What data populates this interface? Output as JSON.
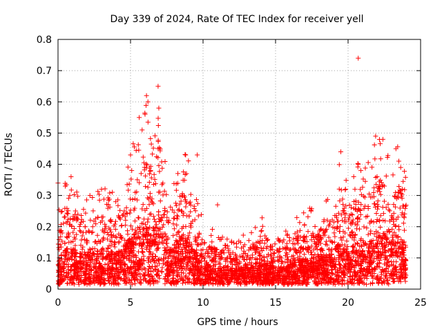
{
  "chart_data": {
    "type": "scatter",
    "title": "Day 339 of 2024, Rate Of TEC Index for receiver yell",
    "xlabel": "GPS time / hours",
    "ylabel": "ROTI / TECUs",
    "xlim": [
      0,
      25
    ],
    "ylim": [
      0,
      0.8
    ],
    "xticks": [
      0,
      5,
      10,
      15,
      20,
      25
    ],
    "yticks": [
      0,
      0.1,
      0.2,
      0.3,
      0.4,
      0.5,
      0.6,
      0.7,
      0.8
    ],
    "xtick_labels": [
      "0",
      "5",
      "10",
      "15",
      "20",
      "25"
    ],
    "ytick_labels": [
      "0",
      "0.1",
      "0.2",
      "0.3",
      "0.4",
      "0.5",
      "0.6",
      "0.7",
      "0.8"
    ],
    "grid": true,
    "marker": "+",
    "color": "#ff0000",
    "series": [
      {
        "name": "ROTI",
        "envelope_x": [
          0,
          0.5,
          1,
          2,
          3,
          4,
          4.5,
          5,
          5.5,
          6,
          6.5,
          7,
          7.5,
          8,
          8.5,
          9,
          9.5,
          10,
          10.5,
          11,
          12,
          13,
          14,
          15,
          16,
          16.5,
          17,
          18,
          19,
          19.5,
          20,
          20.5,
          21,
          21.5,
          22,
          22.5,
          23,
          23.5,
          24
        ],
        "envelope_y": [
          0.23,
          0.33,
          0.33,
          0.28,
          0.32,
          0.3,
          0.33,
          0.43,
          0.5,
          0.62,
          0.5,
          0.66,
          0.35,
          0.33,
          0.43,
          0.43,
          0.3,
          0.2,
          0.18,
          0.17,
          0.15,
          0.16,
          0.22,
          0.16,
          0.18,
          0.22,
          0.24,
          0.26,
          0.3,
          0.43,
          0.3,
          0.4,
          0.38,
          0.4,
          0.48,
          0.46,
          0.4,
          0.45,
          0.35
        ],
        "baseline_y": 0.05,
        "points": [
          [
            0.0,
            0.34
          ],
          [
            0.5,
            0.33
          ],
          [
            0.9,
            0.36
          ],
          [
            2.2,
            0.3
          ],
          [
            3.0,
            0.32
          ],
          [
            5.0,
            0.43
          ],
          [
            5.6,
            0.55
          ],
          [
            6.0,
            0.56
          ],
          [
            6.1,
            0.62
          ],
          [
            6.2,
            0.6
          ],
          [
            5.8,
            0.51
          ],
          [
            6.9,
            0.65
          ],
          [
            6.95,
            0.58
          ],
          [
            6.9,
            0.45
          ],
          [
            8.8,
            0.43
          ],
          [
            9.6,
            0.43
          ],
          [
            11.0,
            0.27
          ],
          [
            19.5,
            0.44
          ],
          [
            20.7,
            0.74
          ],
          [
            21.9,
            0.49
          ],
          [
            22.4,
            0.48
          ],
          [
            23.3,
            0.45
          ],
          [
            20.7,
            0.4
          ],
          [
            22.0,
            0.36
          ],
          [
            23.5,
            0.41
          ]
        ]
      }
    ]
  }
}
